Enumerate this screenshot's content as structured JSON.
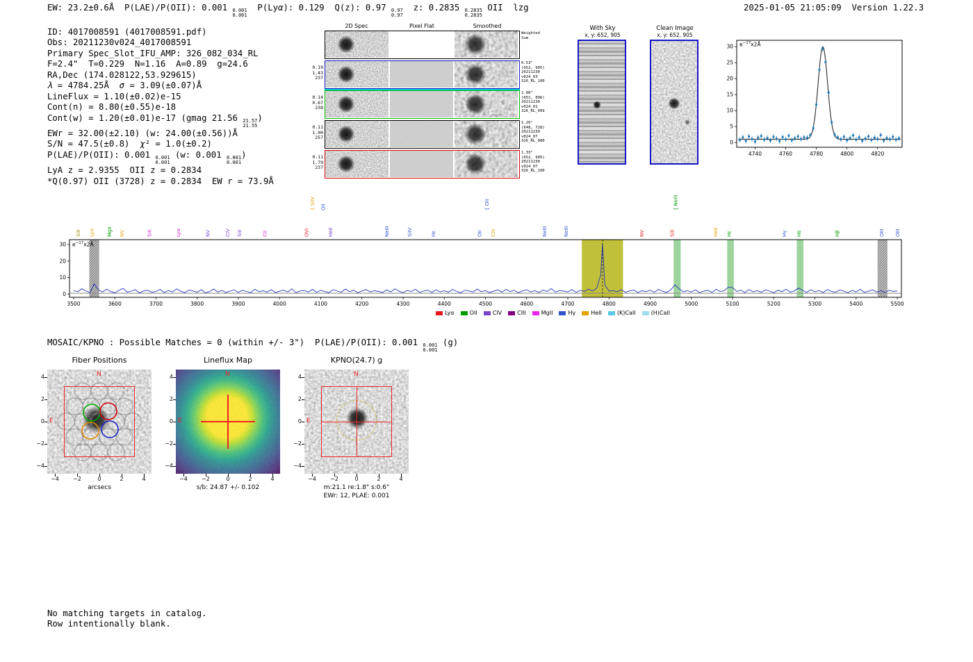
{
  "header": {
    "left": [
      {
        "t": "EW: 23.2±0.6Å  P(LAE)/P(OII): 0.001 "
      },
      {
        "sup": "0.001",
        "sub": "0.001"
      },
      {
        "t": "  P(Ly"
      },
      {
        "i": "α"
      },
      {
        "t": "): 0.129  Q(z): 0.97 "
      },
      {
        "sup": "0.97",
        "sub": "0.97"
      },
      {
        "t": "  z: 0.2835 "
      },
      {
        "sup": "0.2835",
        "sub": "0.2835"
      },
      {
        "t": " OII  lzg"
      }
    ],
    "datetime_version": "2025-01-05 21:05:09  Version 1.22.3"
  },
  "info": {
    "lines": [
      [
        {
          "t": "ID: 4017008591 (4017008591.pdf)"
        }
      ],
      [
        {
          "t": "Obs: 20211230v024_4017008591"
        }
      ],
      [
        {
          "t": "Primary Spec_Slot_IFU_AMP: 326_082_034_RL"
        }
      ],
      [
        {
          "t": "F=2.4\"  T=0.229  N=1.16  A=0.89  g=24.6"
        }
      ],
      [
        {
          "t": "RA,Dec (174.028122,53.929615)"
        }
      ],
      [
        {
          "i": "λ"
        },
        {
          "t": " = 4784.25Å  "
        },
        {
          "i": "σ"
        },
        {
          "t": " = 3.09(±0.07)Å"
        }
      ],
      [
        {
          "t": "LineFlux = 1.10(±0.02)e-15"
        }
      ],
      [
        {
          "t": "Cont(n) = 8.80(±0.55)e-18"
        }
      ],
      [
        {
          "t": "Cont(w) = 1.20(±0.01)e-17 (gmag 21.56 "
        },
        {
          "sup": "21.57",
          "sub": "21.55"
        },
        {
          "t": ")"
        }
      ],
      [
        {
          "t": "EWr = 32.00(±2.10) (w: 24.00(±0.56))Å"
        }
      ],
      [
        {
          "t": "S/N = 47.5(±0.8)  "
        },
        {
          "i": "χ"
        },
        {
          "t": "² = 1.0(±0.2)"
        }
      ],
      [
        {
          "t": "P(LAE)/P(OII): 0.001 "
        },
        {
          "sup": "0.001",
          "sub": "0.001"
        },
        {
          "t": " (w: 0.001 "
        },
        {
          "sup": "0.001",
          "sub": "0.001"
        },
        {
          "t": ")"
        }
      ],
      [
        {
          "t": "LyA z = 2.9355  OII z = 0.2834"
        }
      ],
      [
        {
          "t": "*Q(0.97) OII (3728) z = 0.2834  EW r = 73.9Å"
        }
      ]
    ]
  },
  "spec2d": {
    "col_headers": [
      "2D Spec",
      "Pixel Flat",
      "Smoothed"
    ],
    "rows": [
      {
        "border": "#000000",
        "left": [],
        "right": [
          "Weighted",
          "Sum"
        ]
      },
      {
        "border": "#1515c8",
        "left": [
          "0.19",
          "1.43",
          "237"
        ],
        "right": [
          "0.53\"",
          "(652, 905)",
          "20211230",
          "v024_03",
          "326_RL_100"
        ]
      },
      {
        "border": "#00b800",
        "topline": "#00cccc",
        "left": [
          "0.14",
          "0.67",
          "238"
        ],
        "right": [
          "1.00\"",
          "(651, 896)",
          "20211230",
          "v024_01",
          "326_RL_099"
        ]
      },
      {
        "border": "#000000",
        "left": [
          "0.11",
          "1.00",
          "257"
        ],
        "right": [
          "1.26\"",
          "(648, 728)",
          "20211230",
          "v024_07",
          "326_RL_080"
        ]
      },
      {
        "border": "#d40000",
        "left": [
          "0.11",
          "1.79",
          "237"
        ],
        "right": [
          "1.33\"",
          "(652, 905)",
          "20211230",
          "v024_07",
          "326_RL_100"
        ]
      }
    ]
  },
  "withsky": {
    "title": "With Sky",
    "coords": "x, y: 652, 905"
  },
  "clean": {
    "title": "Clean Image",
    "coords": "x, y: 652, 905"
  },
  "mosaic": {
    "segments": [
      {
        "t": "MOSAIC/KPNO : Possible Matches = 0 (within +/- 3\")  P(LAE)/P(OII): 0.001 "
      },
      {
        "sup": "0.001",
        "sub": "0.001"
      },
      {
        "t": " (g)"
      }
    ]
  },
  "cutouts": {
    "yticks": [
      "4",
      "2",
      "0",
      "−2",
      "−4"
    ],
    "xticks": [
      "−4",
      "−2",
      "0",
      "2",
      "4"
    ],
    "fiber": {
      "title": "Fiber Positions",
      "xlabel": "arcsecs",
      "north": "N",
      "east": "E",
      "fiber_colors": [
        "#00aa00",
        "#cc0000",
        "#2222cc",
        "#dd8800"
      ]
    },
    "lineflux": {
      "title": "Lineflux Map",
      "north": "N",
      "east": "E",
      "caption": "s/b: 24.87 +/- 0.102"
    },
    "kpno": {
      "title": "KPNO(24.7) g",
      "north": "N",
      "east": "E",
      "caption1": "m:21.1 re:1.8\" s:0.6\"",
      "caption2": "EWr: 12, PLAE: 0.001"
    }
  },
  "footer": {
    "lines": [
      "No matching targets in catalog.",
      "Row intentionally blank."
    ]
  },
  "chart_data": [
    {
      "name": "emission-line-fit",
      "type": "scatter",
      "unit_base": "e",
      "unit_exp": "−17",
      "unit_suffix": "x2Å",
      "xlim": [
        4728,
        4836
      ],
      "ylim": [
        -1.5,
        32
      ],
      "xticks": [
        4740,
        4760,
        4780,
        4800,
        4820
      ],
      "yticks": [
        0,
        5,
        10,
        15,
        20,
        25,
        30
      ],
      "fit": {
        "mu": 4784.25,
        "sigma": 3.09,
        "amplitude": 29.0,
        "baseline": 1.0
      },
      "x_start": 4730,
      "x_step": 2,
      "y": [
        0.8,
        1.6,
        0.5,
        1.9,
        1.1,
        0.3,
        1.5,
        2.0,
        0.9,
        1.4,
        0.6,
        1.8,
        1.2,
        0.4,
        1.7,
        1.0,
        2.1,
        0.7,
        1.3,
        1.9,
        1.1,
        1.6,
        1.5,
        2.3,
        4.5,
        11.9,
        22.8,
        29.3,
        25.2,
        15.6,
        6.3,
        2.4,
        1.6,
        1.0,
        1.8,
        0.7,
        1.4,
        2.2,
        0.9,
        1.6,
        0.5,
        1.2,
        1.9,
        0.8,
        1.5,
        1.1,
        2.3,
        0.6,
        1.4,
        1.0,
        1.8,
        0.9,
        1.3
      ],
      "yerr": 0.8,
      "point_color": "#1f77b4",
      "fit_color": "#3a3a3a"
    },
    {
      "name": "full-spectrum",
      "type": "line",
      "unit_base": "e",
      "unit_exp": "−17",
      "unit_suffix": "x2Å",
      "xlim": [
        3490,
        5510
      ],
      "ylim": [
        -2,
        33
      ],
      "xticks": [
        3500,
        3600,
        3700,
        3800,
        3900,
        4000,
        4100,
        4200,
        4300,
        4400,
        4500,
        4600,
        4700,
        4800,
        4900,
        5000,
        5100,
        5200,
        5300,
        5400,
        5500
      ],
      "yticks": [
        0,
        10,
        20,
        30
      ],
      "x_start": 3500,
      "x_step": 10,
      "flux": [
        2.1,
        1.4,
        3.2,
        1.8,
        0.9,
        6.1,
        2.6,
        1.2,
        2.9,
        1.5,
        0.7,
        2.2,
        3.4,
        1.1,
        1.8,
        2.7,
        0.6,
        1.9,
        2.3,
        1.0,
        1.6,
        2.8,
        0.9,
        2.1,
        1.3,
        3.1,
        1.7,
        0.8,
        2.4,
        1.9,
        1.1,
        2.6,
        0.7,
        1.5,
        3.0,
        1.2,
        2.2,
        0.9,
        1.8,
        2.5,
        1.0,
        2.3,
        1.6,
        0.8,
        2.9,
        1.4,
        2.0,
        1.1,
        2.7,
        0.9,
        1.7,
        2.4,
        1.2,
        3.2,
        0.8,
        1.9,
        2.1,
        1.3,
        2.8,
        1.0,
        2.2,
        1.5,
        0.9,
        2.6,
        1.8,
        1.1,
        3.0,
        1.4,
        2.3,
        0.8,
        1.9,
        2.7,
        1.2,
        2.0,
        1.6,
        0.9,
        2.5,
        1.3,
        3.1,
        1.7,
        0.8,
        2.2,
        1.5,
        2.9,
        1.0,
        1.8,
        2.4,
        0.9,
        2.6,
        1.3,
        2.0,
        1.1,
        2.8,
        1.6,
        0.7,
        2.3,
        1.9,
        1.2,
        3.0,
        1.4,
        2.1,
        0.9,
        1.7,
        2.5,
        1.1,
        2.8,
        1.5,
        2.2,
        0.8,
        1.9,
        2.6,
        1.3,
        2.0,
        1.0,
        2.4,
        1.6,
        3.3,
        1.2,
        2.1,
        1.8,
        1.3,
        2.7,
        1.0,
        2.2,
        1.6,
        2.9,
        1.9,
        3.4,
        11.7,
        5.4,
        1.8,
        2.1,
        1.4,
        2.6,
        1.1,
        1.9,
        2.4,
        0.9,
        2.0,
        1.5,
        2.3,
        1.1,
        2.8,
        1.7,
        0.9,
        2.5,
        5.6,
        3.2,
        1.4,
        2.0,
        1.2,
        2.6,
        0.8,
        1.8,
        2.2,
        1.0,
        2.9,
        1.5,
        2.1,
        4.2,
        3.8,
        1.6,
        2.4,
        0.9,
        2.7,
        1.3,
        2.0,
        1.1,
        2.5,
        1.8,
        0.8,
        2.3,
        1.5,
        2.9,
        1.2,
        1.9,
        3.6,
        2.2,
        1.0,
        2.6,
        1.4,
        2.1,
        0.9,
        2.7,
        1.6,
        1.1,
        2.4,
        1.8,
        0.8,
        2.2,
        1.3,
        2.9,
        1.0,
        1.7,
        2.5,
        1.2,
        2.0,
        0.9,
        2.3,
        1.6,
        1.9
      ],
      "extra_points": [
        {
          "x": 4784.25,
          "y": 30.5
        }
      ],
      "continuum_y": 0.5,
      "line_color": "#2233bb",
      "continuum_color": "#888888",
      "detect_line": {
        "x": 4784.25,
        "color": "#222222"
      },
      "bands": [
        {
          "x0": 3538,
          "x1": 3562,
          "style": "hatch"
        },
        {
          "x0": 4734,
          "x1": 4834,
          "style": "solid",
          "color": "#b5b519",
          "opacity": 0.85
        },
        {
          "x0": 4957,
          "x1": 4974,
          "style": "solid",
          "color": "#4daf4a",
          "opacity": 0.55
        },
        {
          "x0": 5087,
          "x1": 5103,
          "style": "solid",
          "color": "#4daf4a",
          "opacity": 0.55
        },
        {
          "x0": 5256,
          "x1": 5272,
          "style": "solid",
          "color": "#4daf4a",
          "opacity": 0.55
        },
        {
          "x0": 5452,
          "x1": 5476,
          "style": "hatch"
        }
      ],
      "line_labels": [
        {
          "wl": 3515,
          "text": "SiII",
          "color": "#999900"
        },
        {
          "wl": 3548,
          "text": "Lyα",
          "color": "#e69f00"
        },
        {
          "wl": 3591,
          "text": "MgII",
          "color": "#009900"
        },
        {
          "wl": 3622,
          "text": "NV",
          "color": "#e69f00"
        },
        {
          "wl": 3688,
          "text": "SiII",
          "color": "#cc22cc"
        },
        {
          "wl": 3758,
          "text": "Lyα",
          "color": "#cc22cc"
        },
        {
          "wl": 3830,
          "text": "NV",
          "color": "#7744cc"
        },
        {
          "wl": 3878,
          "text": "CIV",
          "color": "#7744cc"
        },
        {
          "wl": 3907,
          "text": "SiII",
          "color": "#7744cc"
        },
        {
          "wl": 3968,
          "text": "CII",
          "color": "#cc22cc"
        },
        {
          "wl": 4070,
          "text": "OVI",
          "color": "#e41a1c"
        },
        {
          "wl": 4084,
          "text": "SiIV",
          "color": "#e69f00",
          "brace": true,
          "tier": 2
        },
        {
          "wl": 4110,
          "text": "OII",
          "color": "#3355cc",
          "tier": 2
        },
        {
          "wl": 4128,
          "text": "HeII",
          "color": "#7744cc"
        },
        {
          "wl": 4265,
          "text": "NeIII",
          "color": "#3355cc"
        },
        {
          "wl": 4320,
          "text": "SiIV",
          "color": "#3355cc"
        },
        {
          "wl": 4378,
          "text": "Hε",
          "color": "#3355cc"
        },
        {
          "wl": 4490,
          "text": "OII",
          "color": "#3355cc"
        },
        {
          "wl": 4508,
          "text": "OII",
          "color": "#3355cc",
          "brace": true,
          "tier": 2
        },
        {
          "wl": 4523,
          "text": "CIV",
          "color": "#e69f00"
        },
        {
          "wl": 4648,
          "text": "NeIII",
          "color": "#3355cc"
        },
        {
          "wl": 4700,
          "text": "NeIII",
          "color": "#3355cc"
        },
        {
          "wl": 4884,
          "text": "NV",
          "color": "#e41a1c"
        },
        {
          "wl": 4957,
          "text": "SiII",
          "color": "#e41a1c"
        },
        {
          "wl": 4966,
          "text": "NeIII",
          "color": "#009900",
          "brace": true,
          "tier": 2
        },
        {
          "wl": 5063,
          "text": "HeII",
          "color": "#e69f00"
        },
        {
          "wl": 5096,
          "text": "Hε",
          "color": "#009900"
        },
        {
          "wl": 5230,
          "text": "Hγ",
          "color": "#3355cc"
        },
        {
          "wl": 5265,
          "text": "Hδ",
          "color": "#009900"
        },
        {
          "wl": 5358,
          "text": "Hβ",
          "color": "#009900"
        },
        {
          "wl": 5466,
          "text": "OIII",
          "color": "#3355cc"
        },
        {
          "wl": 5505,
          "text": "OIII",
          "color": "#3355cc"
        }
      ],
      "legend": [
        {
          "label": "Lyα",
          "color": "#e41a1c"
        },
        {
          "label": "OII",
          "color": "#009900"
        },
        {
          "label": "CIV",
          "color": "#7744cc"
        },
        {
          "label": "CIII",
          "color": "#800080"
        },
        {
          "label": "MgII",
          "color": "#ee22ee"
        },
        {
          "label": "Hγ",
          "color": "#3355cc"
        },
        {
          "label": "HeII",
          "color": "#e69f00"
        },
        {
          "label": "(K)CaII",
          "color": "#5bc8e8"
        },
        {
          "label": "(H)CaII",
          "color": "#a0dcf0"
        }
      ]
    }
  ]
}
